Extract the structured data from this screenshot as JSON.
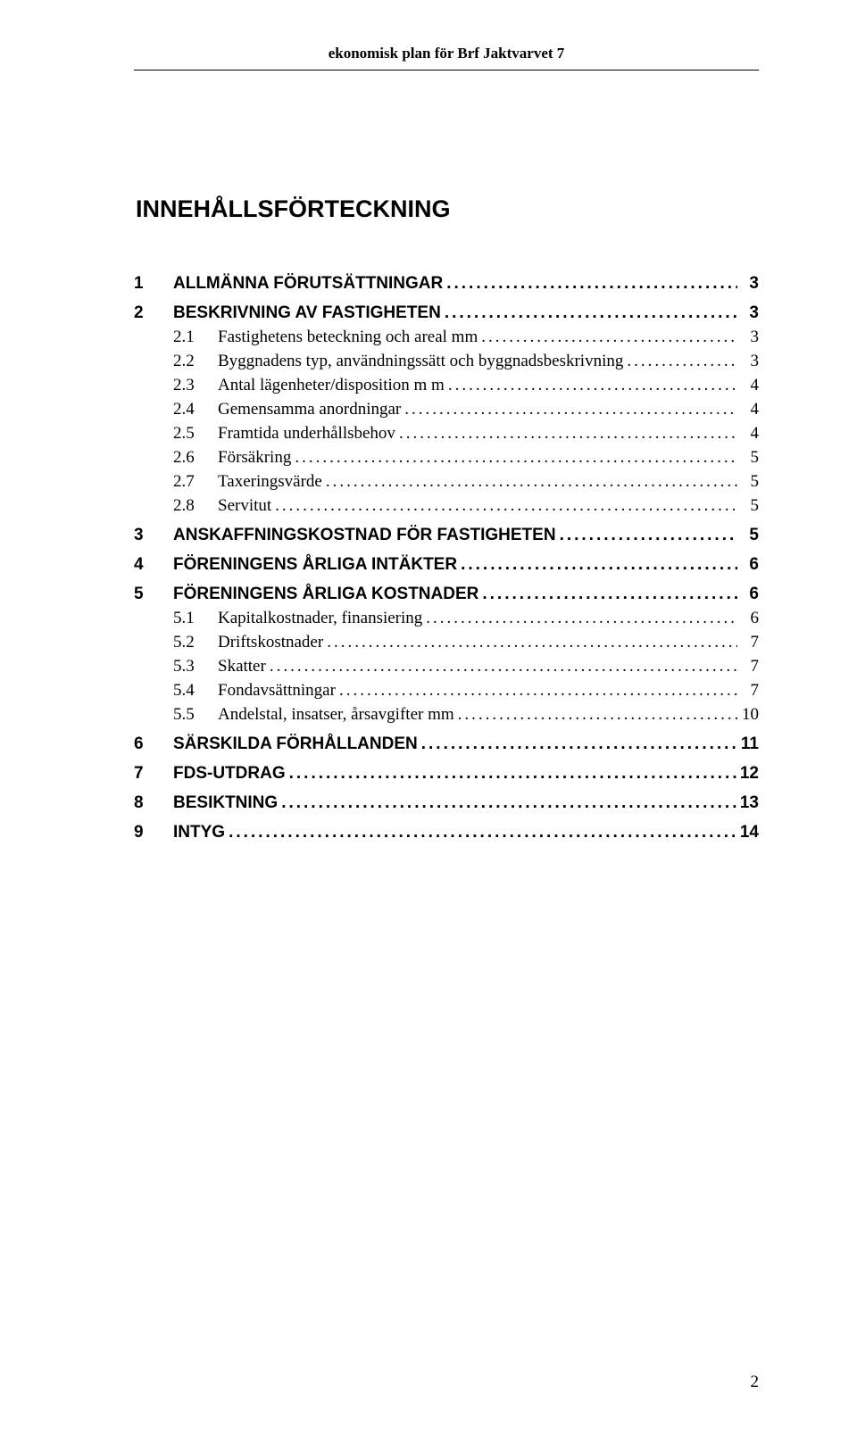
{
  "header": {
    "title": "ekonomisk plan för Brf Jaktvarvet 7"
  },
  "heading": "INNEHÅLLSFÖRTECKNING",
  "toc": [
    {
      "level": 1,
      "num": "1",
      "label": "ALLMÄNNA FÖRUTSÄTTNINGAR",
      "page": "3"
    },
    {
      "level": 1,
      "num": "2",
      "label": "BESKRIVNING AV FASTIGHETEN",
      "page": "3"
    },
    {
      "level": 2,
      "num": "2.1",
      "label": "Fastighetens beteckning och areal mm",
      "page": "3"
    },
    {
      "level": 2,
      "num": "2.2",
      "label": "Byggnadens typ, användningssätt och byggnadsbeskrivning",
      "page": "3"
    },
    {
      "level": 2,
      "num": "2.3",
      "label": "Antal lägenheter/disposition m m",
      "page": "4"
    },
    {
      "level": 2,
      "num": "2.4",
      "label": "Gemensamma anordningar",
      "page": "4"
    },
    {
      "level": 2,
      "num": "2.5",
      "label": "Framtida underhållsbehov",
      "page": "4"
    },
    {
      "level": 2,
      "num": "2.6",
      "label": "Försäkring",
      "page": "5"
    },
    {
      "level": 2,
      "num": "2.7",
      "label": "Taxeringsvärde",
      "page": "5"
    },
    {
      "level": 2,
      "num": "2.8",
      "label": "Servitut",
      "page": "5"
    },
    {
      "level": 1,
      "num": "3",
      "label": "ANSKAFFNINGSKOSTNAD FÖR FASTIGHETEN",
      "page": "5"
    },
    {
      "level": 1,
      "num": "4",
      "label": "FÖRENINGENS ÅRLIGA INTÄKTER",
      "page": "6"
    },
    {
      "level": 1,
      "num": "5",
      "label": "FÖRENINGENS ÅRLIGA KOSTNADER",
      "page": "6"
    },
    {
      "level": 2,
      "num": "5.1",
      "label": "Kapitalkostnader, finansiering",
      "page": "6"
    },
    {
      "level": 2,
      "num": "5.2",
      "label": "Driftskostnader",
      "page": "7"
    },
    {
      "level": 2,
      "num": "5.3",
      "label": "Skatter",
      "page": "7"
    },
    {
      "level": 2,
      "num": "5.4",
      "label": "Fondavsättningar",
      "page": "7"
    },
    {
      "level": 2,
      "num": "5.5",
      "label": "Andelstal, insatser, årsavgifter mm",
      "page": "10"
    },
    {
      "level": 1,
      "num": "6",
      "label": "SÄRSKILDA FÖRHÅLLANDEN",
      "page": "11"
    },
    {
      "level": 1,
      "num": "7",
      "label": "FDS-UTDRAG",
      "page": "12"
    },
    {
      "level": 1,
      "num": "8",
      "label": "BESIKTNING",
      "page": "13"
    },
    {
      "level": 1,
      "num": "9",
      "label": "INTYG",
      "page": "14"
    }
  ],
  "page_number": "2",
  "colors": {
    "text": "#000000",
    "background": "#ffffff"
  }
}
